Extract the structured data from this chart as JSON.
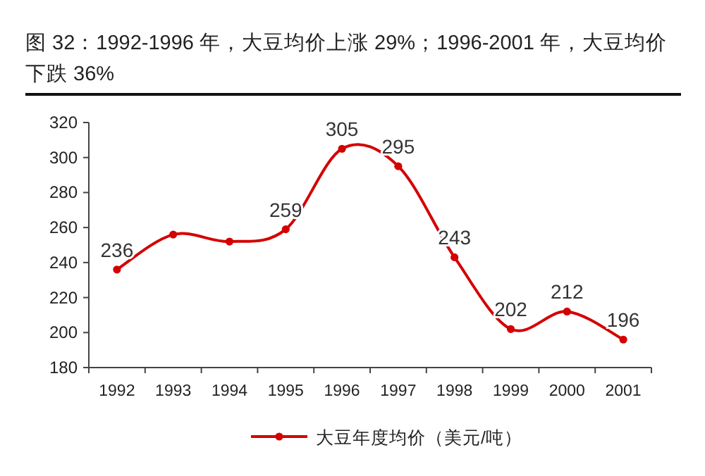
{
  "chart_data": {
    "type": "line",
    "title": "图 32：1992-1996 年，大豆均价上涨 29%；1996-2001 年，大豆均价下跌 36%",
    "categories": [
      "1992",
      "1993",
      "1994",
      "1995",
      "1996",
      "1997",
      "1998",
      "1999",
      "2000",
      "2001"
    ],
    "series": [
      {
        "name": "大豆年度均价（美元/吨）",
        "color": "#d40000",
        "values": [
          236,
          256,
          252,
          259,
          305,
          295,
          243,
          202,
          212,
          196
        ],
        "value_labels": [
          "236",
          null,
          null,
          "259",
          "305",
          "295",
          "243",
          "202",
          "212",
          "196"
        ]
      }
    ],
    "ylim": [
      180,
      320
    ],
    "yticks": [
      180,
      200,
      220,
      240,
      260,
      280,
      300,
      320
    ],
    "grid": false,
    "legend": "bottom",
    "marker": "circle",
    "line_style": "solid"
  }
}
